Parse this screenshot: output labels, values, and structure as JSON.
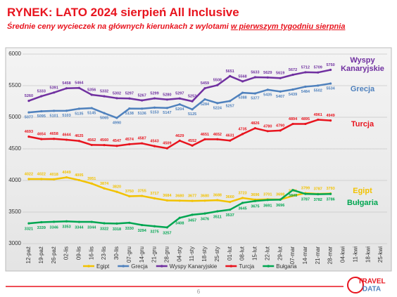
{
  "header": {
    "title": "RYNEK: LATO 2024 sierpień All Inclusive",
    "subtitle": [
      "Średnie ceny wycieczek na głównych kierunkach z wylotami",
      "w pierwszym tygodniu sierpnia"
    ]
  },
  "chart_data": {
    "type": "line",
    "categories": [
      "12-paź",
      "19-paź",
      "26-paź",
      "02-lis",
      "09-lis",
      "16-lis",
      "23-lis",
      "30-lis",
      "07-gru",
      "14-gru",
      "21-gru",
      "28-gru",
      "04-sty",
      "11-sty",
      "18-sty",
      "25-sty",
      "01-lut",
      "08-lut",
      "15-lut",
      "22-lut",
      "29-lut",
      "07-mar",
      "14-mar",
      "21-mar",
      "28-mar",
      "04-kwi",
      "11-kwi",
      "18-kwi",
      "25-kwi"
    ],
    "series": [
      {
        "name": "Egipt",
        "color": "#f2c200",
        "values": [
          4022,
          4022,
          4018,
          4049,
          4005,
          3951,
          3874,
          3820,
          3750,
          3755,
          3717,
          3684,
          3680,
          3677,
          3680,
          3688,
          3660,
          3723,
          3696,
          3701,
          3698,
          3756,
          3799,
          3787,
          3793,
          null,
          null,
          null,
          null
        ]
      },
      {
        "name": "Grecja",
        "color": "#4f81bd",
        "values": [
          5077,
          5095,
          5101,
          5103,
          5135,
          5145,
          5065,
          4990,
          5138,
          5136,
          5153,
          5147,
          5204,
          5125,
          5284,
          5224,
          5257,
          5388,
          5377,
          5435,
          5407,
          5439,
          5484,
          5502,
          5534,
          null,
          null,
          null,
          null
        ]
      },
      {
        "name": "Wyspy Kanaryjskie",
        "color": "#7030a0",
        "values": [
          5260,
          5333,
          5391,
          5458,
          5464,
          5356,
          5332,
          5302,
          5297,
          5267,
          5299,
          5280,
          5297,
          5253,
          5459,
          5508,
          5651,
          5568,
          5633,
          5629,
          5619,
          5672,
          5712,
          5709,
          5750,
          null,
          null,
          null,
          null
        ]
      },
      {
        "name": "Turcja",
        "color": "#e8141e",
        "values": [
          4693,
          4654,
          4658,
          4644,
          4625,
          4562,
          4560,
          4547,
          4574,
          4587,
          4543,
          4509,
          4629,
          4552,
          4651,
          4652,
          4631,
          4735,
          4826,
          4780,
          4790,
          4894,
          4895,
          4961,
          4949,
          null,
          null,
          null,
          null
        ]
      },
      {
        "name": "Bułgaria",
        "color": "#00a651",
        "values": [
          3321,
          3339,
          3346,
          3353,
          3344,
          3344,
          3322,
          3318,
          3330,
          3294,
          3275,
          3257,
          3408,
          3457,
          3476,
          3511,
          3537,
          3645,
          3675,
          3691,
          3696,
          3848,
          3787,
          3782,
          3786,
          null,
          null,
          null,
          null
        ]
      }
    ],
    "ylim": [
      3000,
      6000
    ],
    "yticks": [
      3000,
      3500,
      4000,
      4500,
      5000,
      5500,
      6000
    ],
    "grid": true,
    "legend": "bottom"
  },
  "footer": {
    "page_number": "6",
    "logo": [
      "TRAVEL",
      "DATA"
    ]
  }
}
